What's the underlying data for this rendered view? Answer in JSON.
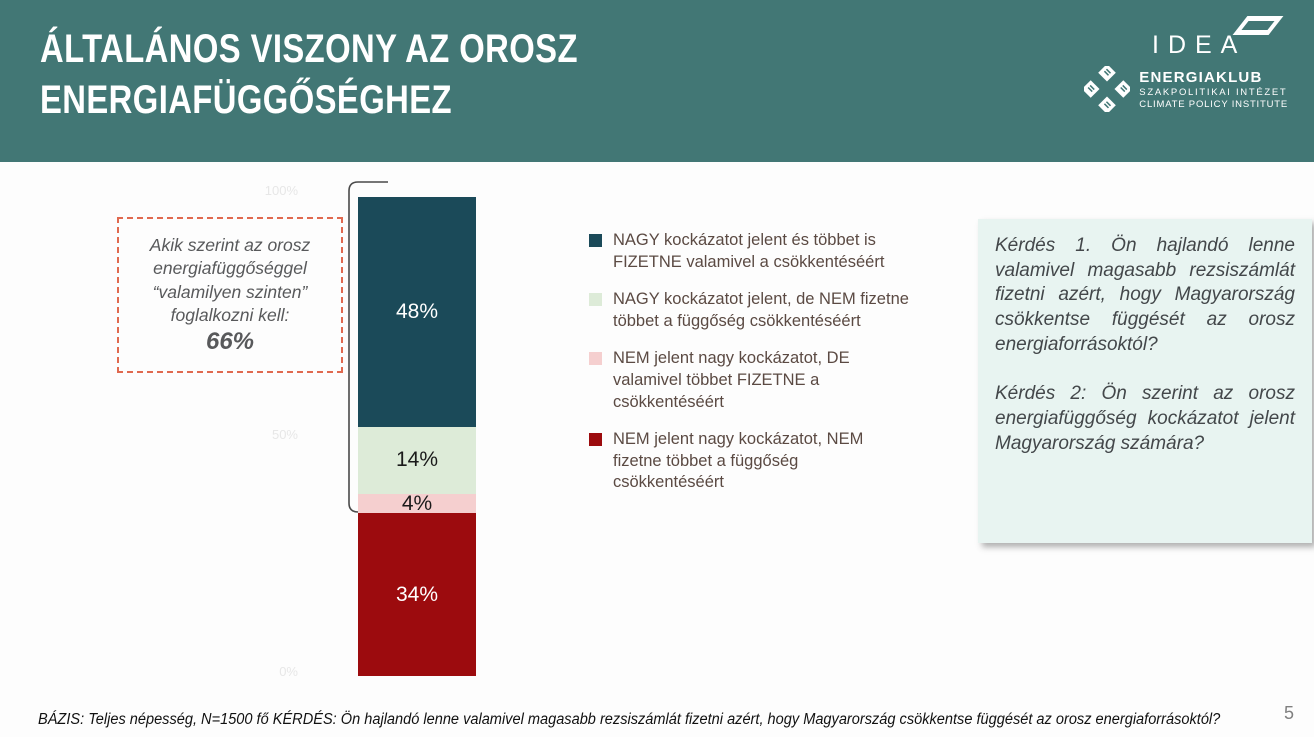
{
  "slide": {
    "title_line1": "ÁLTALÁNOS VISZONY AZ OROSZ",
    "title_line2": "ENERGIAFÜGGŐSÉGHEZ",
    "page_number": "5",
    "footer": "BÁZIS: Teljes népesség, N=1500 fő KÉRDÉS: Ön hajlandó lenne valamivel magasabb rezsiszámlát fizetni azért, hogy Magyarország csökkentse függését az orosz energiaforrásoktól?"
  },
  "logos": {
    "idea": "IDEA",
    "energiaklub_line1": "ENERGIAKLUB",
    "energiaklub_line2": "SZAKPOLITIKAI INTÉZET",
    "energiaklub_line3": "CLIMATE POLICY INSTITUTE"
  },
  "annotation": {
    "text": "Akik szerint az orosz energiafüggőséggel “valamilyen szinten” foglalkozni kell:",
    "value": "66%"
  },
  "questions": {
    "q1": "Kérdés 1. Ön hajlandó lenne valamivel magasabb rezsiszámlát fizetni azért, hogy Magyarország csökkentse függését az orosz energiaforrásoktól?",
    "q2": "Kérdés 2: Ön szerint az orosz energiafüggőség kockázatot jelent Magyarország számára?"
  },
  "chart_data": {
    "type": "bar",
    "stacked": true,
    "orientation": "vertical",
    "categories": [
      "Teljes népesség"
    ],
    "series": [
      {
        "name": "NAGY kockázatot jelent és többet is FIZETNE valamivel a csökkentéséért",
        "value": 48,
        "color": "#1b4a59",
        "label_color": "#ffffff"
      },
      {
        "name": "NAGY kockázatot jelent, de NEM fizetne többet a függőség csökkentéséért",
        "value": 14,
        "color": "#ddebd8",
        "label_color": "#1a1a1a"
      },
      {
        "name": "NEM jelent nagy kockázatot, DE valamivel többet FIZETNE a csökkentéséért",
        "value": 4,
        "color": "#f5cfcf",
        "label_color": "#1a1a1a"
      },
      {
        "name": "NEM jelent nagy kockázatot, NEM fizetne többet a függőség csökkentéséért",
        "value": 34,
        "color": "#9c0b0e",
        "label_color": "#ffffff"
      }
    ],
    "axis_ticks": [
      "100%",
      "50%",
      "0%"
    ],
    "ylim": [
      0,
      100
    ],
    "legend_position": "right",
    "bracket_covers_top_percent": 66
  },
  "colors": {
    "header_bg": "#427775",
    "question_box_bg": "#e8f4f1",
    "dashed_border": "#e0694f",
    "bracket_stroke": "#4a4a4a"
  }
}
